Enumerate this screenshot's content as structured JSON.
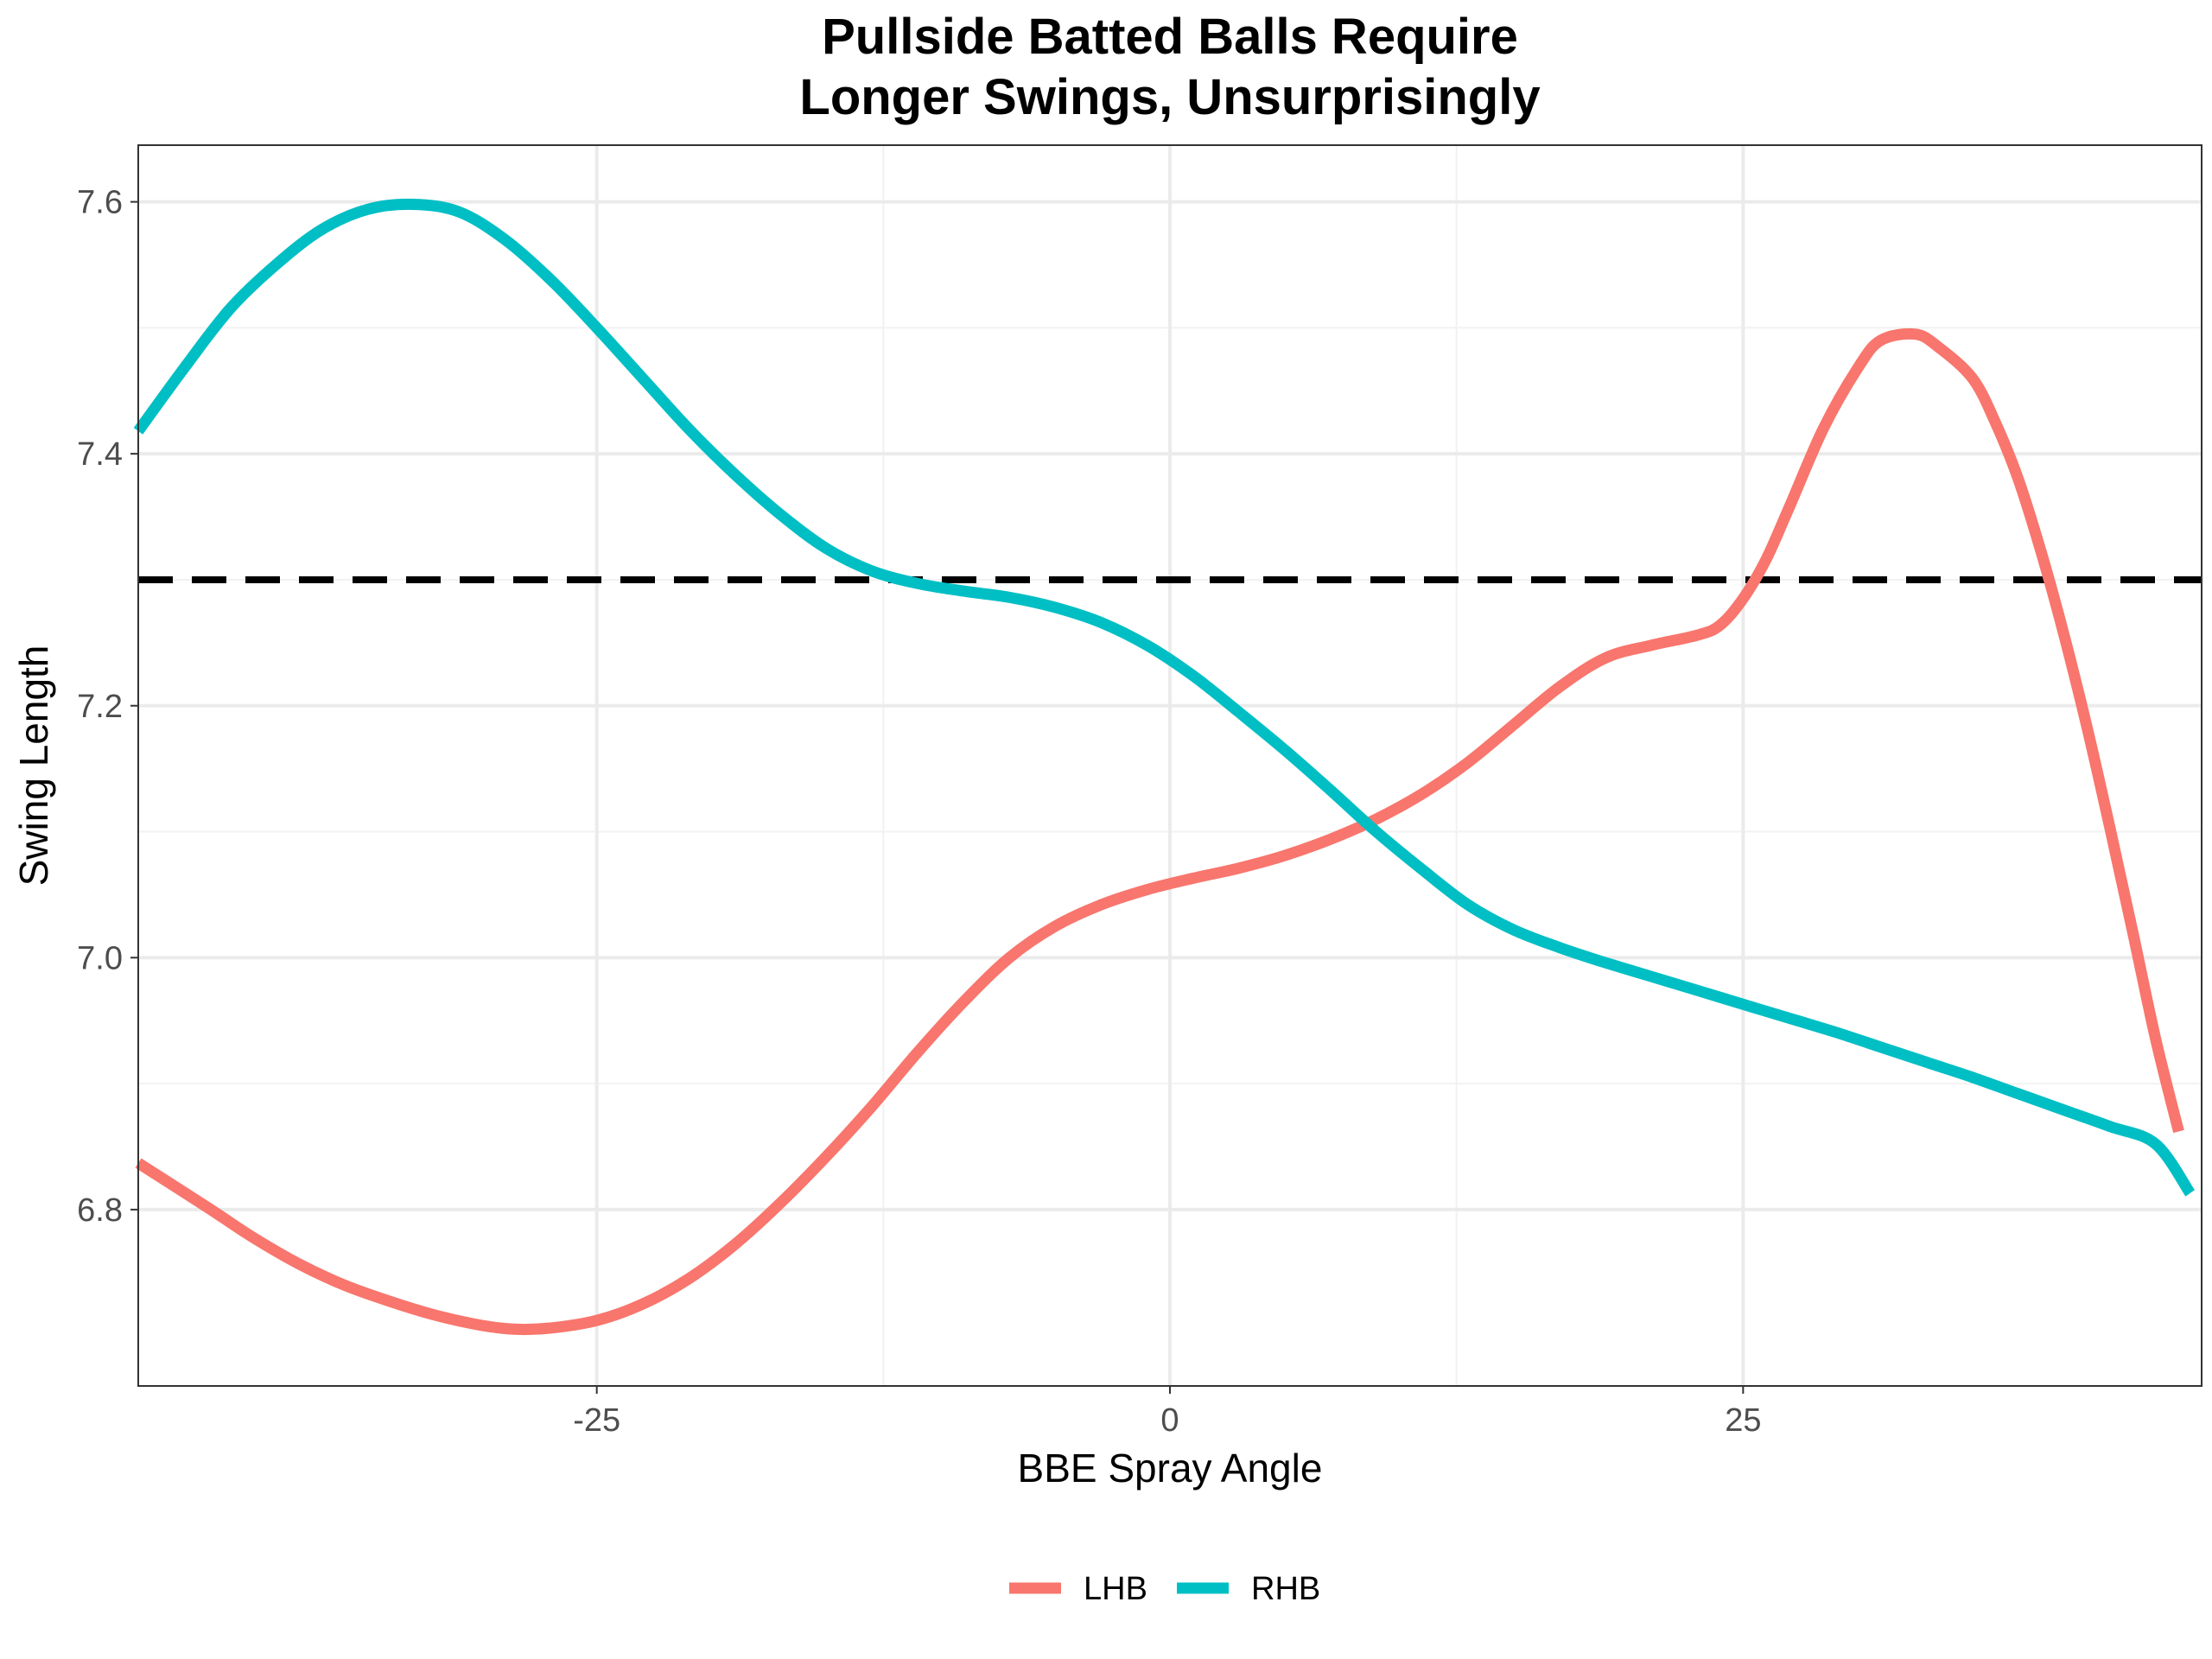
{
  "chart_data": {
    "type": "line",
    "title": "Pullside Batted Balls Require",
    "subtitle": "Longer Swings, Unsurprisingly",
    "xlabel": "BBE Spray Angle",
    "ylabel": "Swing Length",
    "xlim": [
      -45,
      45
    ],
    "ylim": [
      6.66,
      7.645
    ],
    "x_ticks": [
      -25,
      0,
      25
    ],
    "x_tick_labels": [
      "-25",
      "0",
      "25"
    ],
    "y_ticks": [
      6.8,
      7.0,
      7.2,
      7.4,
      7.6
    ],
    "y_tick_labels": [
      "6.8",
      "7.0",
      "7.2",
      "7.4",
      "7.6"
    ],
    "grid": true,
    "legend_position": "bottom",
    "reference_line": {
      "y": 7.3,
      "style": "dashed",
      "color": "#000000"
    },
    "series": [
      {
        "name": "LHB",
        "color": "#F8766D",
        "points": [
          [
            -45,
            6.837
          ],
          [
            -42,
            6.802
          ],
          [
            -40,
            6.778
          ],
          [
            -38,
            6.757
          ],
          [
            -36,
            6.74
          ],
          [
            -34,
            6.727
          ],
          [
            -32,
            6.716
          ],
          [
            -30,
            6.708
          ],
          [
            -28.5,
            6.705
          ],
          [
            -27,
            6.706
          ],
          [
            -25,
            6.712
          ],
          [
            -23,
            6.725
          ],
          [
            -21,
            6.745
          ],
          [
            -19,
            6.772
          ],
          [
            -17,
            6.805
          ],
          [
            -15,
            6.842
          ],
          [
            -13,
            6.882
          ],
          [
            -11,
            6.925
          ],
          [
            -9,
            6.965
          ],
          [
            -7,
            7.0
          ],
          [
            -5,
            7.025
          ],
          [
            -3,
            7.042
          ],
          [
            -1,
            7.054
          ],
          [
            1,
            7.063
          ],
          [
            3,
            7.071
          ],
          [
            5,
            7.081
          ],
          [
            7,
            7.094
          ],
          [
            9,
            7.11
          ],
          [
            11,
            7.13
          ],
          [
            13,
            7.155
          ],
          [
            15,
            7.185
          ],
          [
            17,
            7.215
          ],
          [
            19,
            7.238
          ],
          [
            21,
            7.248
          ],
          [
            23,
            7.256
          ],
          [
            24,
            7.264
          ],
          [
            25,
            7.285
          ],
          [
            26,
            7.316
          ],
          [
            27,
            7.357
          ],
          [
            28.5,
            7.42
          ],
          [
            30,
            7.468
          ],
          [
            31,
            7.49
          ],
          [
            32.5,
            7.495
          ],
          [
            33.5,
            7.485
          ],
          [
            35,
            7.46
          ],
          [
            36,
            7.425
          ],
          [
            37,
            7.38
          ],
          [
            38,
            7.322
          ],
          [
            39,
            7.256
          ],
          [
            40,
            7.183
          ],
          [
            41,
            7.103
          ],
          [
            42,
            7.02
          ],
          [
            43,
            6.935
          ],
          [
            44,
            6.862
          ]
        ]
      },
      {
        "name": "RHB",
        "color": "#00BFC4",
        "points": [
          [
            -45,
            7.418
          ],
          [
            -43,
            7.468
          ],
          [
            -41,
            7.515
          ],
          [
            -39,
            7.55
          ],
          [
            -37,
            7.578
          ],
          [
            -35,
            7.594
          ],
          [
            -33,
            7.598
          ],
          [
            -31,
            7.592
          ],
          [
            -29,
            7.57
          ],
          [
            -27,
            7.538
          ],
          [
            -25,
            7.5
          ],
          [
            -23,
            7.46
          ],
          [
            -21,
            7.42
          ],
          [
            -19,
            7.384
          ],
          [
            -17,
            7.352
          ],
          [
            -15,
            7.325
          ],
          [
            -13,
            7.307
          ],
          [
            -11,
            7.297
          ],
          [
            -9,
            7.291
          ],
          [
            -7,
            7.286
          ],
          [
            -5,
            7.278
          ],
          [
            -3,
            7.266
          ],
          [
            -1,
            7.248
          ],
          [
            1,
            7.224
          ],
          [
            3,
            7.195
          ],
          [
            5,
            7.165
          ],
          [
            7,
            7.133
          ],
          [
            9,
            7.1
          ],
          [
            11,
            7.07
          ],
          [
            13,
            7.042
          ],
          [
            15,
            7.022
          ],
          [
            17,
            7.008
          ],
          [
            19,
            6.996
          ],
          [
            21,
            6.985
          ],
          [
            23,
            6.974
          ],
          [
            25,
            6.963
          ],
          [
            27,
            6.952
          ],
          [
            29,
            6.941
          ],
          [
            31,
            6.929
          ],
          [
            33,
            6.917
          ],
          [
            35,
            6.905
          ],
          [
            37,
            6.892
          ],
          [
            39,
            6.879
          ],
          [
            41,
            6.866
          ],
          [
            43,
            6.852
          ],
          [
            44.5,
            6.813
          ]
        ]
      }
    ]
  }
}
